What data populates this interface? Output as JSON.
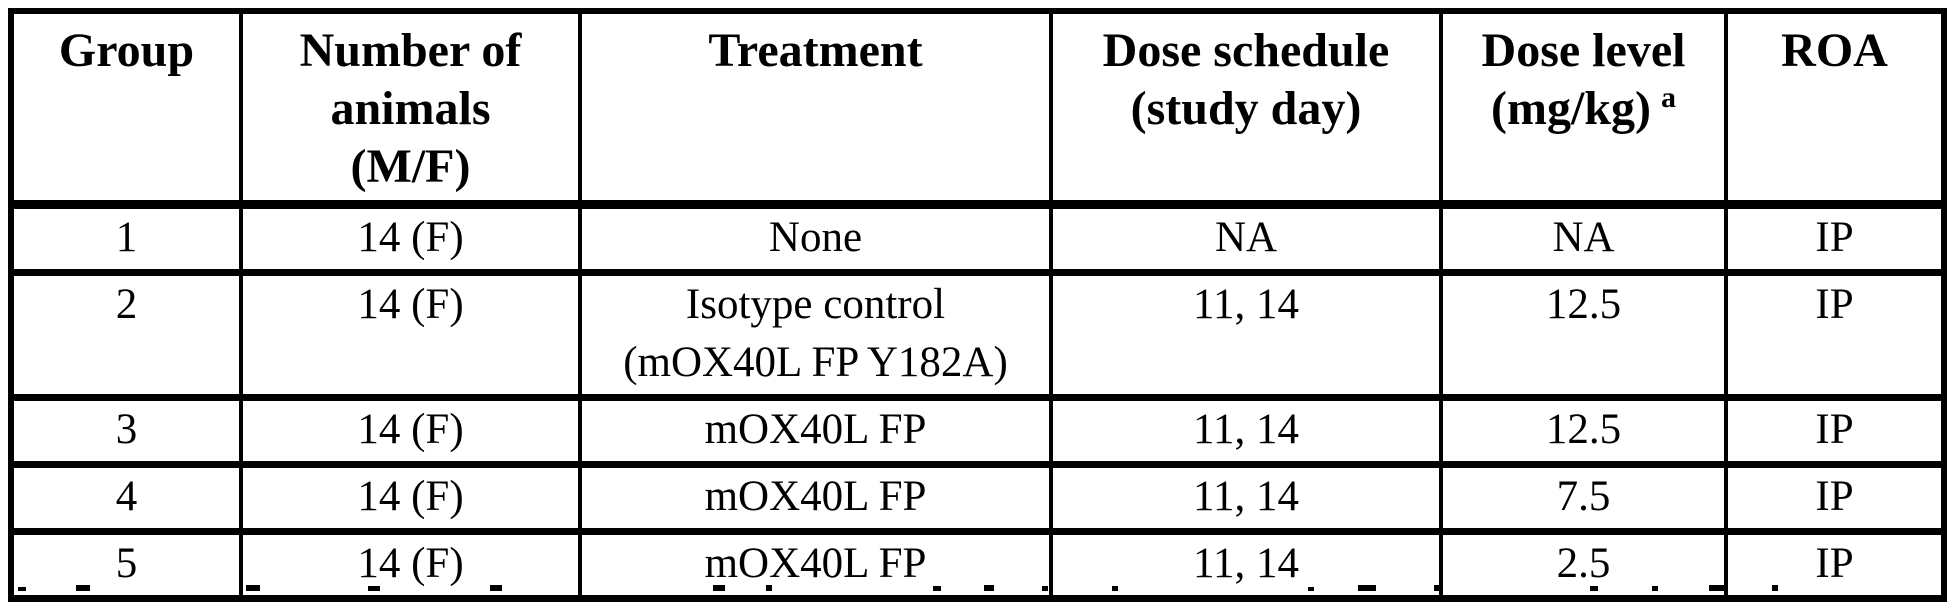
{
  "colors": {
    "ink": "#000000",
    "background": "#ffffff"
  },
  "table": {
    "columns": [
      {
        "label": "Group"
      },
      {
        "label": "Number of\nanimals\n(M/F)"
      },
      {
        "label": "Treatment"
      },
      {
        "label": "Dose schedule\n(study day)"
      },
      {
        "label": "Dose level\n(mg/kg)",
        "superscript": "a"
      },
      {
        "label": "ROA"
      }
    ],
    "rows": [
      {
        "group": "1",
        "animals": "14 (F)",
        "treatment": "None",
        "schedule": "NA",
        "dose": "NA",
        "roa": "IP"
      },
      {
        "group": "2",
        "animals": "14 (F)",
        "treatment": "Isotype control\n(mOX40L FP Y182A)",
        "schedule": "11, 14",
        "dose": "12.5",
        "roa": "IP"
      },
      {
        "group": "3",
        "animals": "14 (F)",
        "treatment": "mOX40L FP",
        "schedule": "11, 14",
        "dose": "12.5",
        "roa": "IP"
      },
      {
        "group": "4",
        "animals": "14 (F)",
        "treatment": "mOX40L FP",
        "schedule": "11, 14",
        "dose": "7.5",
        "roa": "IP"
      },
      {
        "group": "5",
        "animals": "14 (F)",
        "treatment": "mOX40L FP",
        "schedule": "11, 14",
        "dose": "2.5",
        "roa": "IP"
      }
    ]
  },
  "clipped_footnote": {
    "visible": true,
    "fragments": [
      [
        18,
        8,
        4
      ],
      [
        76,
        14,
        6
      ],
      [
        246,
        14,
        6
      ],
      [
        368,
        12,
        5
      ],
      [
        490,
        12,
        6
      ],
      [
        713,
        12,
        6
      ],
      [
        766,
        6,
        6
      ],
      [
        933,
        8,
        5
      ],
      [
        984,
        10,
        6
      ],
      [
        1042,
        6,
        5
      ],
      [
        1112,
        6,
        5
      ],
      [
        1308,
        6,
        4
      ],
      [
        1358,
        18,
        6
      ],
      [
        1434,
        8,
        6
      ],
      [
        1590,
        8,
        5
      ],
      [
        1652,
        6,
        5
      ],
      [
        1709,
        16,
        6
      ],
      [
        1772,
        6,
        6
      ]
    ]
  }
}
